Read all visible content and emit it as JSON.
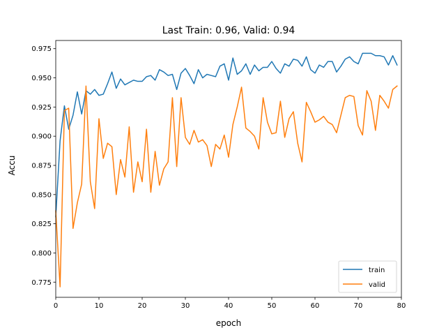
{
  "chart_data": {
    "type": "line",
    "title": "Last Train: 0.96, Valid: 0.94",
    "xlabel": "epoch",
    "ylabel": "Accu",
    "xlim": [
      0,
      80
    ],
    "ylim": [
      0.762,
      0.982
    ],
    "xticks": [
      0,
      10,
      20,
      30,
      40,
      50,
      60,
      70,
      80
    ],
    "yticks": [
      0.775,
      0.8,
      0.825,
      0.85,
      0.875,
      0.9,
      0.925,
      0.95,
      0.975
    ],
    "ytick_labels": [
      "0.775",
      "0.800",
      "0.825",
      "0.850",
      "0.875",
      "0.900",
      "0.925",
      "0.950",
      "0.975"
    ],
    "grid": false,
    "legend_position": "lower-right",
    "x": [
      0,
      1,
      2,
      3,
      4,
      5,
      6,
      7,
      8,
      9,
      10,
      11,
      12,
      13,
      14,
      15,
      16,
      17,
      18,
      19,
      20,
      21,
      22,
      23,
      24,
      25,
      26,
      27,
      28,
      29,
      30,
      31,
      32,
      33,
      34,
      35,
      36,
      37,
      38,
      39,
      40,
      41,
      42,
      43,
      44,
      45,
      46,
      47,
      48,
      49,
      50,
      51,
      52,
      53,
      54,
      55,
      56,
      57,
      58,
      59,
      60,
      61,
      62,
      63,
      64,
      65,
      66,
      67,
      68,
      69,
      70,
      71,
      72,
      73,
      74,
      75,
      76,
      77,
      78,
      79
    ],
    "series": [
      {
        "name": "train",
        "color": "#1f77b4",
        "values": [
          0.831,
          0.896,
          0.926,
          0.906,
          0.918,
          0.938,
          0.919,
          0.939,
          0.936,
          0.94,
          0.935,
          0.936,
          0.945,
          0.955,
          0.941,
          0.949,
          0.944,
          0.946,
          0.948,
          0.947,
          0.947,
          0.951,
          0.952,
          0.948,
          0.957,
          0.955,
          0.952,
          0.953,
          0.94,
          0.954,
          0.958,
          0.952,
          0.945,
          0.957,
          0.95,
          0.953,
          0.952,
          0.951,
          0.96,
          0.962,
          0.948,
          0.967,
          0.953,
          0.956,
          0.962,
          0.953,
          0.961,
          0.956,
          0.959,
          0.959,
          0.964,
          0.958,
          0.954,
          0.962,
          0.96,
          0.966,
          0.965,
          0.96,
          0.968,
          0.957,
          0.954,
          0.961,
          0.959,
          0.964,
          0.964,
          0.955,
          0.96,
          0.966,
          0.968,
          0.964,
          0.962,
          0.971,
          0.971,
          0.971,
          0.969,
          0.969,
          0.968,
          0.961,
          0.969,
          0.961
        ]
      },
      {
        "name": "valid",
        "color": "#ff7f0e",
        "values": [
          0.836,
          0.771,
          0.922,
          0.924,
          0.821,
          0.843,
          0.859,
          0.943,
          0.861,
          0.838,
          0.915,
          0.881,
          0.894,
          0.891,
          0.85,
          0.88,
          0.865,
          0.908,
          0.852,
          0.878,
          0.861,
          0.906,
          0.852,
          0.887,
          0.858,
          0.872,
          0.878,
          0.933,
          0.874,
          0.933,
          0.899,
          0.893,
          0.905,
          0.895,
          0.897,
          0.892,
          0.874,
          0.893,
          0.889,
          0.901,
          0.882,
          0.91,
          0.925,
          0.942,
          0.907,
          0.904,
          0.9,
          0.889,
          0.933,
          0.912,
          0.902,
          0.903,
          0.93,
          0.899,
          0.915,
          0.921,
          0.894,
          0.878,
          0.929,
          0.921,
          0.912,
          0.914,
          0.917,
          0.912,
          0.91,
          0.903,
          0.918,
          0.933,
          0.935,
          0.934,
          0.909,
          0.901,
          0.939,
          0.93,
          0.905,
          0.935,
          0.93,
          0.924,
          0.94,
          0.943
        ]
      }
    ]
  }
}
